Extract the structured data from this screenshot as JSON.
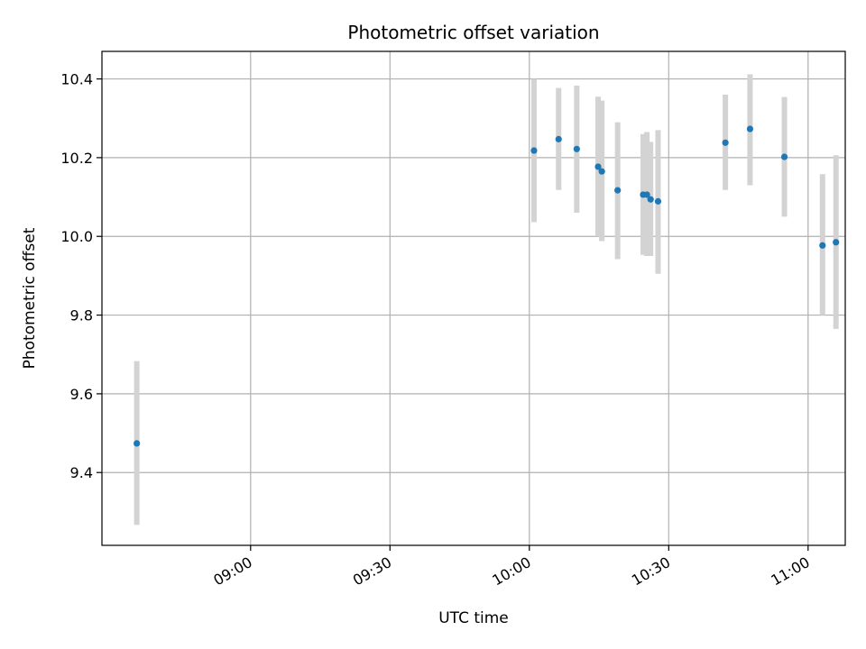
{
  "chart_data": {
    "type": "scatter",
    "title": "Photometric offset variation",
    "xlabel": "UTC time",
    "ylabel": "Photometric offset",
    "x_unit": "minutes",
    "xlim": [
      8.4667,
      11.1333
    ],
    "ylim": [
      9.215,
      10.47
    ],
    "x_ticks": [
      {
        "value": 9.0,
        "label": "09:00"
      },
      {
        "value": 9.5,
        "label": "09:30"
      },
      {
        "value": 10.0,
        "label": "10:00"
      },
      {
        "value": 10.5,
        "label": "10:30"
      },
      {
        "value": 11.0,
        "label": "11:00"
      }
    ],
    "y_ticks": [
      {
        "value": 9.4,
        "label": "9.4"
      },
      {
        "value": 9.6,
        "label": "9.6"
      },
      {
        "value": 9.8,
        "label": "9.8"
      },
      {
        "value": 10.0,
        "label": "10.0"
      },
      {
        "value": 10.2,
        "label": "10.2"
      },
      {
        "value": 10.4,
        "label": "10.4"
      }
    ],
    "grid": true,
    "colors": {
      "point": "#1f77b4",
      "errorbar": "#d3d3d3",
      "grid": "#b0b0b0"
    },
    "points": [
      {
        "x": 8.5917,
        "y": 9.474,
        "ylow": 9.267,
        "yhigh": 9.683
      },
      {
        "x": 10.0167,
        "y": 10.218,
        "ylow": 10.036,
        "yhigh": 10.4
      },
      {
        "x": 10.105,
        "y": 10.247,
        "ylow": 10.118,
        "yhigh": 10.377
      },
      {
        "x": 10.17,
        "y": 10.222,
        "ylow": 10.06,
        "yhigh": 10.383
      },
      {
        "x": 10.2467,
        "y": 10.177,
        "ylow": 10.0,
        "yhigh": 10.355
      },
      {
        "x": 10.26,
        "y": 10.165,
        "ylow": 9.988,
        "yhigh": 10.345
      },
      {
        "x": 10.3167,
        "y": 10.117,
        "ylow": 9.942,
        "yhigh": 10.29
      },
      {
        "x": 10.4083,
        "y": 10.106,
        "ylow": 9.953,
        "yhigh": 10.26
      },
      {
        "x": 10.4217,
        "y": 10.106,
        "ylow": 9.95,
        "yhigh": 10.265
      },
      {
        "x": 10.435,
        "y": 10.094,
        "ylow": 9.95,
        "yhigh": 10.24
      },
      {
        "x": 10.4617,
        "y": 10.089,
        "ylow": 9.905,
        "yhigh": 10.27
      },
      {
        "x": 10.7033,
        "y": 10.238,
        "ylow": 10.118,
        "yhigh": 10.36
      },
      {
        "x": 10.7917,
        "y": 10.273,
        "ylow": 10.13,
        "yhigh": 10.412
      },
      {
        "x": 10.915,
        "y": 10.202,
        "ylow": 10.05,
        "yhigh": 10.354
      },
      {
        "x": 11.0517,
        "y": 9.977,
        "ylow": 9.8,
        "yhigh": 10.158
      },
      {
        "x": 11.1,
        "y": 9.985,
        "ylow": 9.765,
        "yhigh": 10.206
      }
    ]
  }
}
